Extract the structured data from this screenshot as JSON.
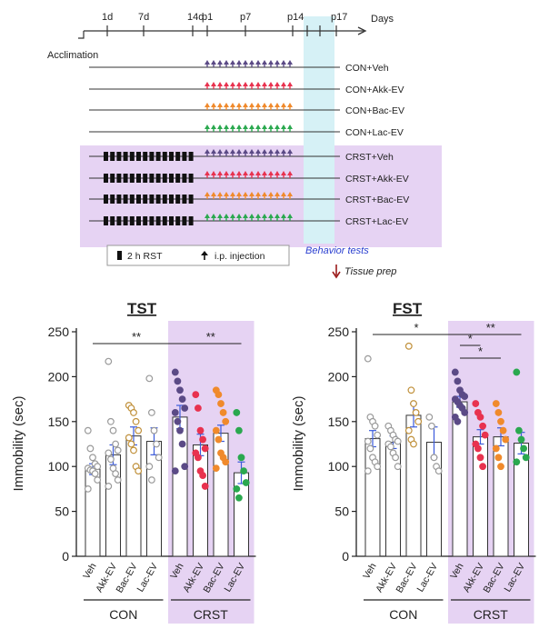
{
  "colors": {
    "veh_dot": "#5b4a86",
    "akk": "#e8324f",
    "bac": "#f08a2c",
    "lac": "#2aa84f",
    "crst_bg": "#e6d3f3",
    "behavior_bg": "#d6f1f6",
    "behavior_text": "#2a3fd0",
    "tissue_arrow": "#9b1b1b",
    "con_dot": "#9a9a9a",
    "bac_con_dot": "#c0903a"
  },
  "timeline": {
    "axis_label": "Days",
    "ticks": [
      "1d",
      "7d",
      "14d",
      "p1",
      "p7",
      "p14",
      "p17"
    ],
    "start_label": "Acclimation",
    "groups": [
      {
        "label": "CON+Veh",
        "stress": false,
        "inj": "veh_dot"
      },
      {
        "label": "CON+Akk-EV",
        "stress": false,
        "inj": "akk"
      },
      {
        "label": "CON+Bac-EV",
        "stress": false,
        "inj": "bac"
      },
      {
        "label": "CON+Lac-EV",
        "stress": false,
        "inj": "lac"
      },
      {
        "label": "CRST+Veh",
        "stress": true,
        "inj": "veh_dot"
      },
      {
        "label": "CRST+Akk-EV",
        "stress": true,
        "inj": "akk"
      },
      {
        "label": "CRST+Bac-EV",
        "stress": true,
        "inj": "bac"
      },
      {
        "label": "CRST+Lac-EV",
        "stress": true,
        "inj": "lac"
      }
    ],
    "legend_rst": "2 h RST",
    "legend_inj": "i.p. injection",
    "behavior_label": "Behavior tests",
    "tissue_label": "Tissue prep"
  },
  "chart_data": [
    {
      "type": "bar",
      "title": "TST",
      "ylabel": "Immobility (sec)",
      "ylim": [
        0,
        250
      ],
      "yticks": [
        0,
        50,
        100,
        150,
        200,
        250
      ],
      "categories": [
        "Veh",
        "Akk-EV",
        "Bac-EV",
        "Lac-EV",
        "Veh",
        "Akk-EV",
        "Bac-EV",
        "Lac-EV"
      ],
      "groups": [
        {
          "name": "CON",
          "indices": [
            0,
            1,
            2,
            3
          ]
        },
        {
          "name": "CRST",
          "indices": [
            4,
            5,
            6,
            7
          ]
        }
      ],
      "values": [
        97,
        113,
        134,
        128,
        155,
        124,
        137,
        93
      ],
      "sem": [
        6,
        11,
        10,
        15,
        13,
        12,
        9,
        12
      ],
      "points": [
        [
          140,
          120,
          110,
          103,
          100,
          98,
          96,
          95,
          92,
          85,
          75
        ],
        [
          217,
          150,
          140,
          125,
          118,
          115,
          108,
          98,
          92,
          85,
          78
        ],
        [
          168,
          165,
          160,
          150,
          140,
          132,
          125,
          118,
          100,
          95
        ],
        [
          198,
          160,
          140,
          125,
          110,
          100,
          85
        ],
        [
          205,
          195,
          185,
          175,
          165,
          160,
          150,
          140,
          125,
          100,
          95
        ],
        [
          180,
          165,
          140,
          130,
          120,
          115,
          110,
          95,
          90,
          78
        ],
        [
          185,
          180,
          170,
          160,
          150,
          140,
          130,
          115,
          110,
          105,
          98
        ],
        [
          160,
          140,
          110,
          95,
          82,
          75,
          65
        ]
      ],
      "significance": [
        {
          "from": 0,
          "to": 4,
          "label": "**"
        },
        {
          "from": 4,
          "to": 7,
          "label": "**"
        }
      ]
    },
    {
      "type": "bar",
      "title": "FST",
      "ylabel": "Immobility (sec)",
      "ylim": [
        0,
        250
      ],
      "yticks": [
        0,
        50,
        100,
        150,
        200,
        250
      ],
      "categories": [
        "Veh",
        "Akk-EV",
        "Bac-EV",
        "Lac-EV",
        "Veh",
        "Akk-EV",
        "Bac-EV",
        "Lac-EV"
      ],
      "groups": [
        {
          "name": "CON",
          "indices": [
            0,
            1,
            2,
            3
          ]
        },
        {
          "name": "CRST",
          "indices": [
            4,
            5,
            6,
            7
          ]
        }
      ],
      "values": [
        131,
        127,
        157,
        127,
        172,
        133,
        133,
        126
      ],
      "sem": [
        9,
        7,
        13,
        17,
        6,
        8,
        10,
        12
      ],
      "points": [
        [
          220,
          155,
          150,
          145,
          135,
          128,
          120,
          110,
          105,
          100,
          95
        ],
        [
          145,
          140,
          135,
          130,
          128,
          125,
          122,
          115,
          110,
          100
        ],
        [
          234,
          185,
          170,
          160,
          150,
          140,
          130,
          125
        ],
        [
          155,
          145,
          110,
          100,
          95
        ],
        [
          205,
          195,
          185,
          180,
          178,
          175,
          172,
          168,
          165,
          160,
          155,
          150
        ],
        [
          170,
          160,
          155,
          145,
          135,
          125,
          120,
          110,
          100
        ],
        [
          170,
          160,
          150,
          140,
          130,
          120,
          110,
          100
        ],
        [
          205,
          140,
          130,
          120,
          110,
          105
        ]
      ],
      "significance": [
        {
          "from": 0,
          "to": 4,
          "label": "*"
        },
        {
          "from": 4,
          "to": 5,
          "label": "*"
        },
        {
          "from": 4,
          "to": 6,
          "label": "*"
        },
        {
          "from": 4,
          "to": 7,
          "label": "**"
        }
      ]
    }
  ]
}
